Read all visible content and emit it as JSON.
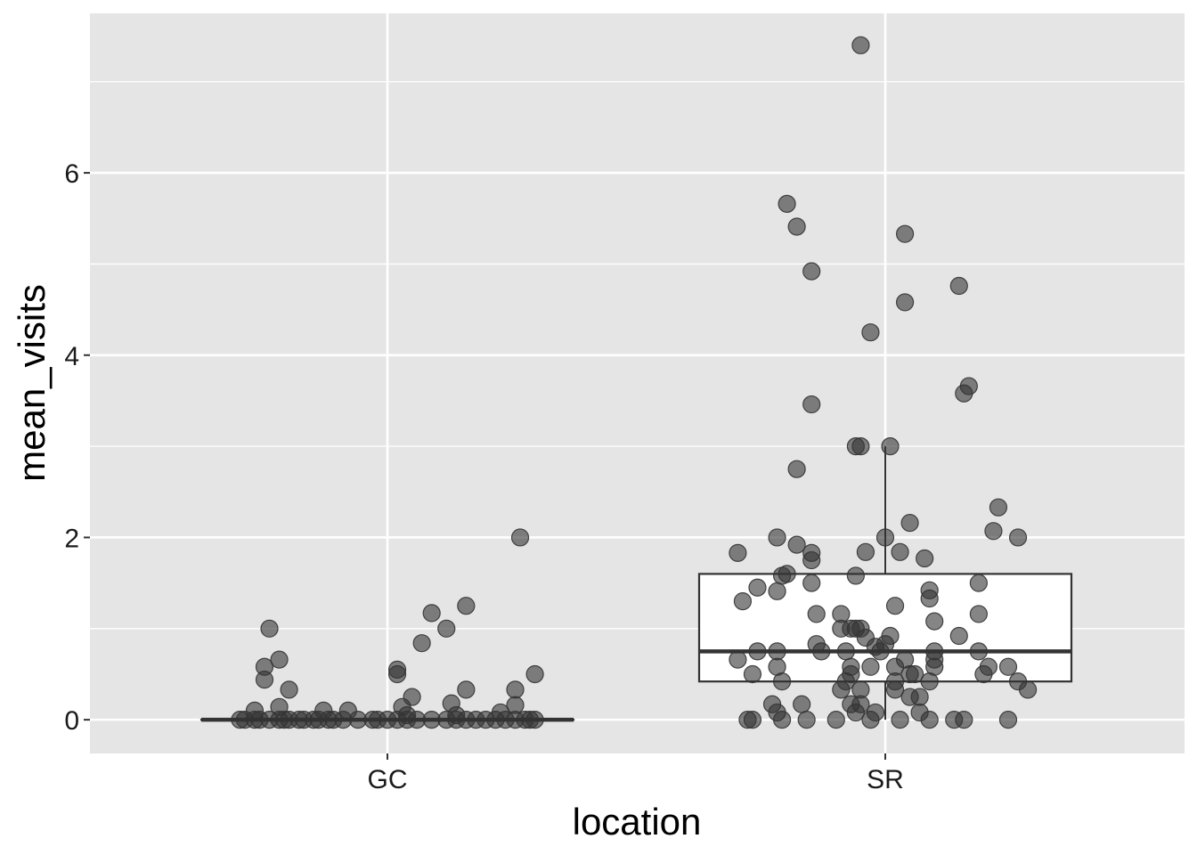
{
  "chart_data": {
    "type": "boxplot",
    "xlabel": "location",
    "ylabel": "mean_visits",
    "categories": [
      "GC",
      "SR"
    ],
    "ylim": [
      -0.37,
      7.75
    ],
    "yticks": [
      0,
      2,
      4,
      6
    ],
    "yticks_labels": [
      "0",
      "2",
      "4",
      "6"
    ],
    "grid": true,
    "colors": {
      "panel": "#e5e5e5",
      "grid": "#ffffff",
      "point": "#333333",
      "box_fill": "#ffffff",
      "box_stroke": "#333333"
    },
    "boxes": [
      {
        "category": "GC",
        "q1": 0,
        "median": 0,
        "q3": 0,
        "whisker_low": 0,
        "whisker_high": 0
      },
      {
        "category": "SR",
        "q1": 0.42,
        "median": 0.75,
        "q3": 1.6,
        "whisker_low": 0,
        "whisker_high": 3.0
      }
    ],
    "series": [
      {
        "category": "GC",
        "points": [
          {
            "x": -0.3,
            "y": 0
          },
          {
            "x": -0.29,
            "y": 0
          },
          {
            "x": -0.27,
            "y": 0
          },
          {
            "x": -0.26,
            "y": 0
          },
          {
            "x": -0.24,
            "y": 0
          },
          {
            "x": -0.22,
            "y": 0
          },
          {
            "x": -0.21,
            "y": 0
          },
          {
            "x": -0.2,
            "y": 0
          },
          {
            "x": -0.18,
            "y": 0
          },
          {
            "x": -0.17,
            "y": 0
          },
          {
            "x": -0.15,
            "y": 0
          },
          {
            "x": -0.14,
            "y": 0
          },
          {
            "x": -0.12,
            "y": 0
          },
          {
            "x": -0.11,
            "y": 0
          },
          {
            "x": -0.09,
            "y": 0
          },
          {
            "x": -0.06,
            "y": 0
          },
          {
            "x": -0.03,
            "y": 0
          },
          {
            "x": -0.02,
            "y": 0
          },
          {
            "x": 0.0,
            "y": 0
          },
          {
            "x": 0.02,
            "y": 0
          },
          {
            "x": 0.04,
            "y": 0
          },
          {
            "x": 0.06,
            "y": 0
          },
          {
            "x": 0.09,
            "y": 0
          },
          {
            "x": 0.12,
            "y": 0
          },
          {
            "x": 0.14,
            "y": 0
          },
          {
            "x": 0.16,
            "y": 0
          },
          {
            "x": 0.18,
            "y": 0
          },
          {
            "x": 0.2,
            "y": 0
          },
          {
            "x": 0.22,
            "y": 0
          },
          {
            "x": 0.24,
            "y": 0
          },
          {
            "x": 0.26,
            "y": 0
          },
          {
            "x": 0.28,
            "y": 0
          },
          {
            "x": 0.29,
            "y": 0
          },
          {
            "x": 0.3,
            "y": 0
          },
          {
            "x": -0.24,
            "y": 1.0
          },
          {
            "x": -0.25,
            "y": 0.58
          },
          {
            "x": -0.22,
            "y": 0.66
          },
          {
            "x": -0.25,
            "y": 0.44
          },
          {
            "x": -0.2,
            "y": 0.33
          },
          {
            "x": -0.22,
            "y": 0.14
          },
          {
            "x": -0.27,
            "y": 0.1
          },
          {
            "x": -0.13,
            "y": 0.1
          },
          {
            "x": -0.08,
            "y": 0.1
          },
          {
            "x": 0.02,
            "y": 0.55
          },
          {
            "x": 0.02,
            "y": 0.5
          },
          {
            "x": 0.07,
            "y": 0.84
          },
          {
            "x": 0.09,
            "y": 1.17
          },
          {
            "x": 0.12,
            "y": 1.0
          },
          {
            "x": 0.16,
            "y": 1.25
          },
          {
            "x": 0.16,
            "y": 0.33
          },
          {
            "x": 0.13,
            "y": 0.18
          },
          {
            "x": 0.05,
            "y": 0.25
          },
          {
            "x": 0.03,
            "y": 0.14
          },
          {
            "x": 0.04,
            "y": 0.05
          },
          {
            "x": 0.14,
            "y": 0.05
          },
          {
            "x": 0.23,
            "y": 0.08
          },
          {
            "x": 0.26,
            "y": 0.33
          },
          {
            "x": 0.26,
            "y": 0.16
          },
          {
            "x": 0.27,
            "y": 2.0
          },
          {
            "x": 0.3,
            "y": 0.5
          }
        ]
      },
      {
        "category": "SR",
        "points": [
          {
            "x": -0.05,
            "y": 7.4
          },
          {
            "x": -0.2,
            "y": 5.66
          },
          {
            "x": -0.18,
            "y": 5.41
          },
          {
            "x": 0.04,
            "y": 5.33
          },
          {
            "x": -0.15,
            "y": 4.92
          },
          {
            "x": 0.04,
            "y": 4.58
          },
          {
            "x": 0.15,
            "y": 4.76
          },
          {
            "x": -0.03,
            "y": 4.25
          },
          {
            "x": 0.17,
            "y": 3.66
          },
          {
            "x": 0.16,
            "y": 3.58
          },
          {
            "x": -0.15,
            "y": 3.46
          },
          {
            "x": -0.05,
            "y": 3.0
          },
          {
            "x": -0.06,
            "y": 3.0
          },
          {
            "x": 0.01,
            "y": 3.0
          },
          {
            "x": -0.18,
            "y": 2.75
          },
          {
            "x": 0.05,
            "y": 2.16
          },
          {
            "x": 0.23,
            "y": 2.33
          },
          {
            "x": 0.22,
            "y": 2.07
          },
          {
            "x": 0.27,
            "y": 2.0
          },
          {
            "x": -0.22,
            "y": 2.0
          },
          {
            "x": -0.18,
            "y": 1.92
          },
          {
            "x": 0.0,
            "y": 2.0
          },
          {
            "x": -0.3,
            "y": 1.83
          },
          {
            "x": -0.15,
            "y": 1.83
          },
          {
            "x": -0.04,
            "y": 1.84
          },
          {
            "x": 0.03,
            "y": 1.84
          },
          {
            "x": 0.08,
            "y": 1.77
          },
          {
            "x": -0.15,
            "y": 1.75
          },
          {
            "x": -0.2,
            "y": 1.6
          },
          {
            "x": -0.21,
            "y": 1.58
          },
          {
            "x": -0.06,
            "y": 1.58
          },
          {
            "x": -0.26,
            "y": 1.45
          },
          {
            "x": -0.22,
            "y": 1.41
          },
          {
            "x": -0.15,
            "y": 1.5
          },
          {
            "x": 0.09,
            "y": 1.42
          },
          {
            "x": 0.09,
            "y": 1.33
          },
          {
            "x": 0.19,
            "y": 1.5
          },
          {
            "x": -0.29,
            "y": 1.3
          },
          {
            "x": 0.02,
            "y": 1.25
          },
          {
            "x": 0.1,
            "y": 1.08
          },
          {
            "x": 0.19,
            "y": 1.16
          },
          {
            "x": -0.14,
            "y": 1.16
          },
          {
            "x": -0.09,
            "y": 1.16
          },
          {
            "x": -0.09,
            "y": 1.0
          },
          {
            "x": -0.07,
            "y": 1.0
          },
          {
            "x": -0.06,
            "y": 1.0
          },
          {
            "x": -0.05,
            "y": 1.0
          },
          {
            "x": -0.04,
            "y": 0.9
          },
          {
            "x": 0.01,
            "y": 0.92
          },
          {
            "x": 0.15,
            "y": 0.92
          },
          {
            "x": -0.14,
            "y": 0.83
          },
          {
            "x": -0.13,
            "y": 0.75
          },
          {
            "x": -0.26,
            "y": 0.75
          },
          {
            "x": -0.22,
            "y": 0.75
          },
          {
            "x": -0.08,
            "y": 0.75
          },
          {
            "x": -0.02,
            "y": 0.8
          },
          {
            "x": 0.0,
            "y": 0.83
          },
          {
            "x": -0.01,
            "y": 0.75
          },
          {
            "x": 0.1,
            "y": 0.75
          },
          {
            "x": 0.19,
            "y": 0.75
          },
          {
            "x": -0.3,
            "y": 0.66
          },
          {
            "x": -0.22,
            "y": 0.58
          },
          {
            "x": -0.07,
            "y": 0.58
          },
          {
            "x": -0.03,
            "y": 0.58
          },
          {
            "x": 0.02,
            "y": 0.58
          },
          {
            "x": 0.04,
            "y": 0.66
          },
          {
            "x": 0.1,
            "y": 0.66
          },
          {
            "x": 0.1,
            "y": 0.58
          },
          {
            "x": 0.21,
            "y": 0.58
          },
          {
            "x": 0.25,
            "y": 0.58
          },
          {
            "x": -0.27,
            "y": 0.5
          },
          {
            "x": -0.07,
            "y": 0.5
          },
          {
            "x": 0.05,
            "y": 0.5
          },
          {
            "x": 0.06,
            "y": 0.5
          },
          {
            "x": 0.2,
            "y": 0.5
          },
          {
            "x": -0.21,
            "y": 0.42
          },
          {
            "x": -0.08,
            "y": 0.42
          },
          {
            "x": 0.02,
            "y": 0.42
          },
          {
            "x": 0.09,
            "y": 0.42
          },
          {
            "x": 0.27,
            "y": 0.42
          },
          {
            "x": 0.29,
            "y": 0.33
          },
          {
            "x": -0.09,
            "y": 0.33
          },
          {
            "x": -0.05,
            "y": 0.33
          },
          {
            "x": 0.02,
            "y": 0.33
          },
          {
            "x": 0.07,
            "y": 0.25
          },
          {
            "x": 0.05,
            "y": 0.25
          },
          {
            "x": -0.23,
            "y": 0.17
          },
          {
            "x": -0.17,
            "y": 0.17
          },
          {
            "x": -0.07,
            "y": 0.17
          },
          {
            "x": -0.05,
            "y": 0.17
          },
          {
            "x": -0.06,
            "y": 0.08
          },
          {
            "x": -0.22,
            "y": 0.08
          },
          {
            "x": -0.02,
            "y": 0.08
          },
          {
            "x": 0.07,
            "y": 0.08
          },
          {
            "x": -0.28,
            "y": 0
          },
          {
            "x": -0.27,
            "y": 0
          },
          {
            "x": -0.21,
            "y": 0
          },
          {
            "x": -0.16,
            "y": 0
          },
          {
            "x": -0.1,
            "y": 0
          },
          {
            "x": -0.03,
            "y": 0
          },
          {
            "x": 0.03,
            "y": 0
          },
          {
            "x": 0.09,
            "y": 0
          },
          {
            "x": 0.14,
            "y": 0
          },
          {
            "x": 0.16,
            "y": 0
          },
          {
            "x": 0.25,
            "y": 0
          }
        ]
      }
    ]
  }
}
